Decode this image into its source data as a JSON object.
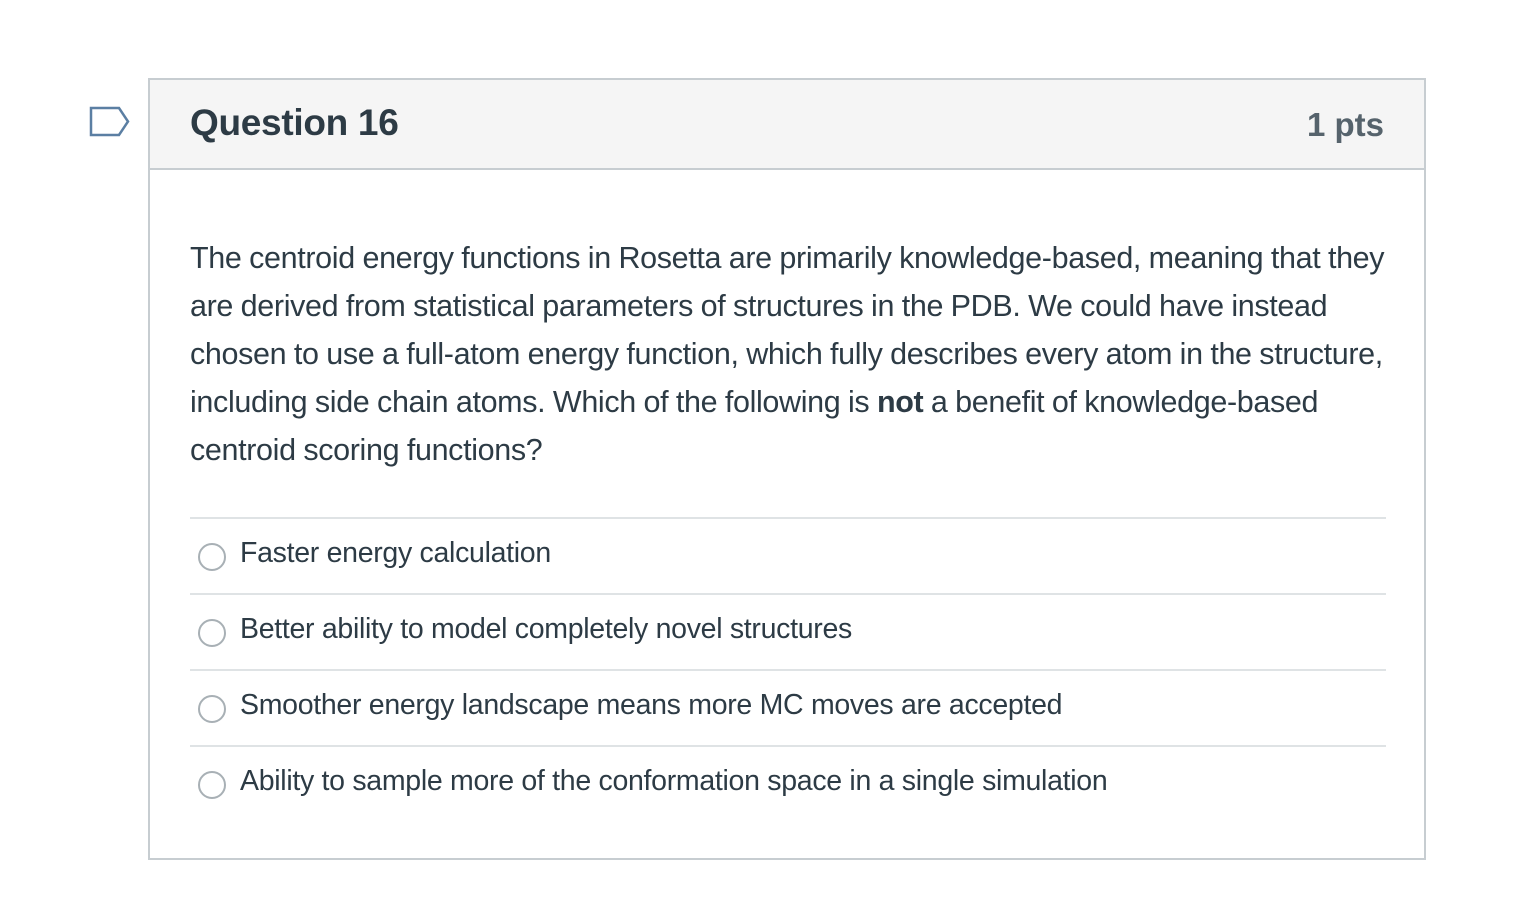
{
  "question": {
    "title": "Question 16",
    "points": "1 pts",
    "text_before_bold": "The centroid energy functions in Rosetta are primarily knowledge-based, meaning that they are derived from statistical parameters of structures in the PDB. We could have instead chosen to use a full-atom energy function, which fully describes every atom in the structure, including side chain atoms. Which of the following is ",
    "text_bold": "not",
    "text_after_bold": " a benefit of knowledge-based centroid scoring functions?"
  },
  "answers": [
    {
      "label": "Faster energy calculation"
    },
    {
      "label": "Better ability to model completely novel structures"
    },
    {
      "label": "Smoother energy landscape means more MC moves are accepted"
    },
    {
      "label": "Ability to sample more of the conformation space in a single simulation"
    }
  ],
  "icons": {
    "flag": "flag-question-icon",
    "radio": "radio-button-icon"
  },
  "colors": {
    "text": "#2d3b45",
    "points": "#56636c",
    "header_bg": "#f5f5f5",
    "border": "#c7cdd1",
    "flag": "#5b7fa3"
  }
}
